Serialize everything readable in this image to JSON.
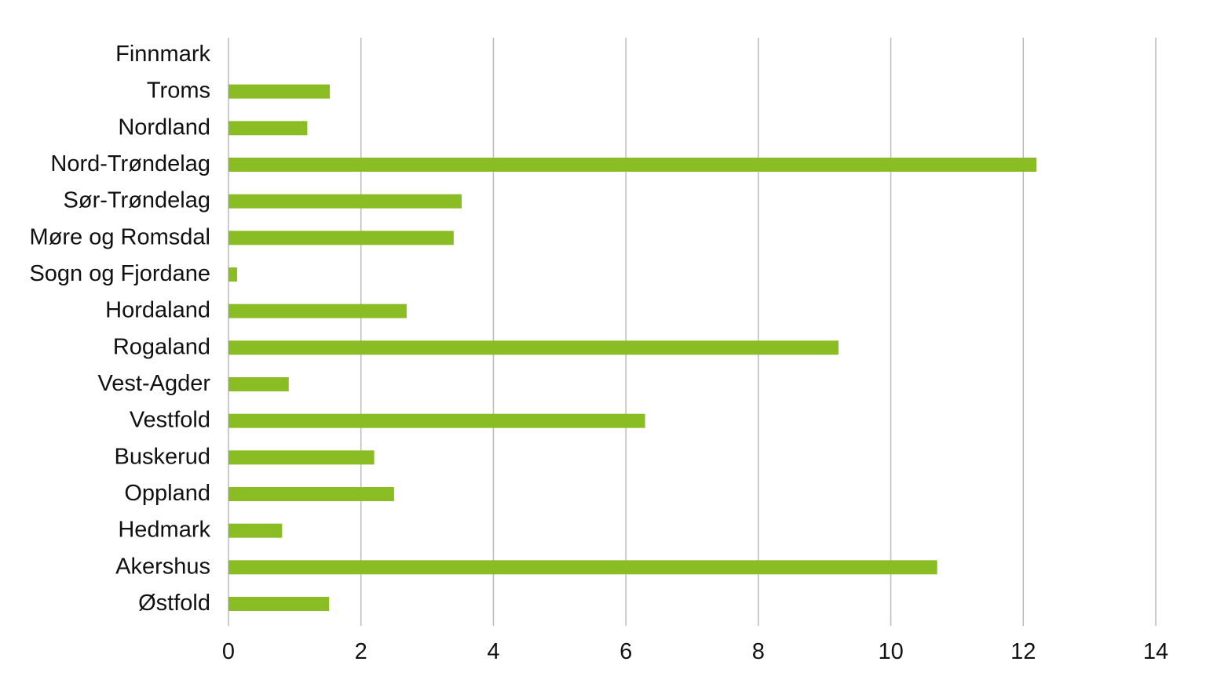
{
  "chart_data": {
    "type": "bar",
    "orientation": "horizontal",
    "title": "",
    "xlabel": "",
    "ylabel": "",
    "categories": [
      "Finnmark",
      "Troms",
      "Nordland",
      "Nord-Trøndelag",
      "Sør-Trøndelag",
      "Møre og Romsdal",
      "Sogn og Fjordane",
      "Hordaland",
      "Rogaland",
      "Vest-Agder",
      "Vestfold",
      "Buskerud",
      "Oppland",
      "Hedmark",
      "Akershus",
      "Østfold"
    ],
    "values": [
      0,
      1.53,
      1.19,
      12.2,
      3.52,
      3.4,
      0.13,
      2.69,
      9.21,
      0.91,
      6.29,
      2.2,
      2.5,
      0.81,
      10.7,
      1.52
    ],
    "xlim": [
      0,
      14
    ],
    "xticks": [
      "0",
      "2",
      "4",
      "6",
      "8",
      "10",
      "12",
      "14"
    ],
    "grid": "vertical",
    "legend": "none",
    "bar_color": "#8abd24",
    "grid_color": "#bbbbbb"
  }
}
